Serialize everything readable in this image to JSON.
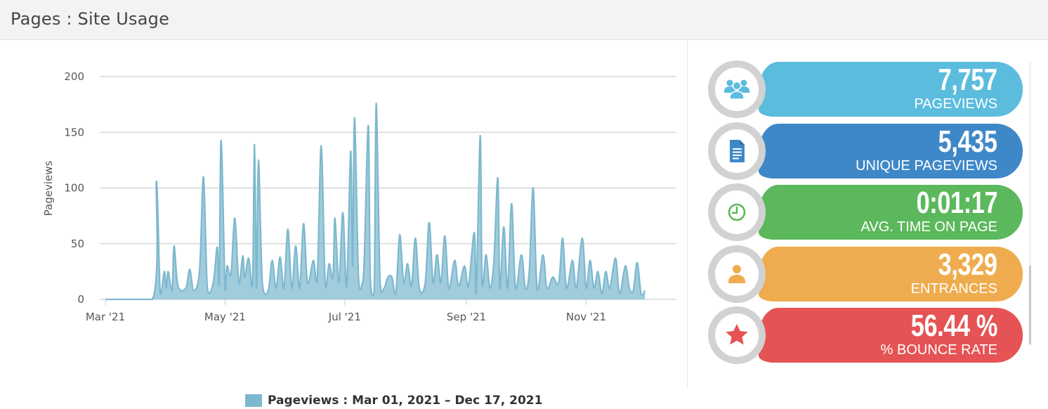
{
  "header": {
    "title": "Pages : Site Usage"
  },
  "chart_data": {
    "type": "area",
    "ylabel": "Pageviews",
    "xlabel": "",
    "ylim": [
      0,
      200
    ],
    "yticks": [
      0,
      50,
      100,
      150,
      200
    ],
    "xrange": [
      "2021-03-01",
      "2021-12-17"
    ],
    "xticks": [
      {
        "date": "2021-03-01",
        "label": "Mar '21"
      },
      {
        "date": "2021-05-01",
        "label": "May '21"
      },
      {
        "date": "2021-07-01",
        "label": "Jul '21"
      },
      {
        "date": "2021-09-01",
        "label": "Sep '21"
      },
      {
        "date": "2021-11-01",
        "label": "Nov '21"
      }
    ],
    "grid": true,
    "series": [
      {
        "name": "Pageviews : Mar 01, 2021 – Dec 17, 2021",
        "color": "#7db8cf",
        "points": [
          [
            "2021-03-01",
            0
          ],
          [
            "2021-03-25",
            0
          ],
          [
            "2021-03-27",
            106
          ],
          [
            "2021-03-29",
            5
          ],
          [
            "2021-03-31",
            25
          ],
          [
            "2021-04-01",
            10
          ],
          [
            "2021-04-02",
            25
          ],
          [
            "2021-04-04",
            8
          ],
          [
            "2021-04-05",
            48
          ],
          [
            "2021-04-07",
            12
          ],
          [
            "2021-04-11",
            10
          ],
          [
            "2021-04-13",
            27
          ],
          [
            "2021-04-15",
            8
          ],
          [
            "2021-04-18",
            26
          ],
          [
            "2021-04-20",
            110
          ],
          [
            "2021-04-22",
            10
          ],
          [
            "2021-04-25",
            15
          ],
          [
            "2021-04-27",
            47
          ],
          [
            "2021-04-28",
            15
          ],
          [
            "2021-04-29",
            143
          ],
          [
            "2021-05-01",
            10
          ],
          [
            "2021-05-02",
            30
          ],
          [
            "2021-05-04",
            23
          ],
          [
            "2021-05-06",
            73
          ],
          [
            "2021-05-08",
            15
          ],
          [
            "2021-05-10",
            39
          ],
          [
            "2021-05-11",
            20
          ],
          [
            "2021-05-13",
            37
          ],
          [
            "2021-05-15",
            15
          ],
          [
            "2021-05-16",
            139
          ],
          [
            "2021-05-17",
            10
          ],
          [
            "2021-05-18",
            125
          ],
          [
            "2021-05-20",
            15
          ],
          [
            "2021-05-23",
            8
          ],
          [
            "2021-05-25",
            35
          ],
          [
            "2021-05-27",
            10
          ],
          [
            "2021-05-29",
            38
          ],
          [
            "2021-05-31",
            10
          ],
          [
            "2021-06-02",
            63
          ],
          [
            "2021-06-04",
            10
          ],
          [
            "2021-06-06",
            48
          ],
          [
            "2021-06-08",
            10
          ],
          [
            "2021-06-10",
            68
          ],
          [
            "2021-06-12",
            15
          ],
          [
            "2021-06-15",
            35
          ],
          [
            "2021-06-17",
            20
          ],
          [
            "2021-06-19",
            138
          ],
          [
            "2021-06-21",
            15
          ],
          [
            "2021-06-23",
            32
          ],
          [
            "2021-06-25",
            20
          ],
          [
            "2021-06-26",
            73
          ],
          [
            "2021-06-28",
            15
          ],
          [
            "2021-06-30",
            78
          ],
          [
            "2021-07-02",
            12
          ],
          [
            "2021-07-04",
            133
          ],
          [
            "2021-07-05",
            30
          ],
          [
            "2021-07-06",
            163
          ],
          [
            "2021-07-08",
            20
          ],
          [
            "2021-07-10",
            15
          ],
          [
            "2021-07-11",
            40
          ],
          [
            "2021-07-13",
            156
          ],
          [
            "2021-07-14",
            20
          ],
          [
            "2021-07-16",
            8
          ],
          [
            "2021-07-17",
            176
          ],
          [
            "2021-07-19",
            15
          ],
          [
            "2021-07-21",
            10
          ],
          [
            "2021-07-23",
            20
          ],
          [
            "2021-07-25",
            20
          ],
          [
            "2021-07-27",
            5
          ],
          [
            "2021-07-29",
            58
          ],
          [
            "2021-07-31",
            15
          ],
          [
            "2021-08-02",
            32
          ],
          [
            "2021-08-04",
            12
          ],
          [
            "2021-08-06",
            55
          ],
          [
            "2021-08-08",
            10
          ],
          [
            "2021-08-11",
            15
          ],
          [
            "2021-08-13",
            69
          ],
          [
            "2021-08-15",
            15
          ],
          [
            "2021-08-17",
            40
          ],
          [
            "2021-08-19",
            15
          ],
          [
            "2021-08-21",
            57
          ],
          [
            "2021-08-23",
            10
          ],
          [
            "2021-08-26",
            35
          ],
          [
            "2021-08-28",
            12
          ],
          [
            "2021-08-31",
            30
          ],
          [
            "2021-09-02",
            12
          ],
          [
            "2021-09-05",
            60
          ],
          [
            "2021-09-06",
            5
          ],
          [
            "2021-09-08",
            147
          ],
          [
            "2021-09-09",
            15
          ],
          [
            "2021-09-11",
            40
          ],
          [
            "2021-09-13",
            10
          ],
          [
            "2021-09-15",
            35
          ],
          [
            "2021-09-17",
            109
          ],
          [
            "2021-09-18",
            10
          ],
          [
            "2021-09-20",
            65
          ],
          [
            "2021-09-22",
            10
          ],
          [
            "2021-09-24",
            86
          ],
          [
            "2021-09-26",
            10
          ],
          [
            "2021-09-29",
            40
          ],
          [
            "2021-10-01",
            10
          ],
          [
            "2021-10-03",
            25
          ],
          [
            "2021-10-05",
            100
          ],
          [
            "2021-10-07",
            10
          ],
          [
            "2021-10-10",
            40
          ],
          [
            "2021-10-12",
            10
          ],
          [
            "2021-10-15",
            20
          ],
          [
            "2021-10-18",
            15
          ],
          [
            "2021-10-20",
            55
          ],
          [
            "2021-10-22",
            10
          ],
          [
            "2021-10-25",
            35
          ],
          [
            "2021-10-27",
            10
          ],
          [
            "2021-10-30",
            55
          ],
          [
            "2021-11-01",
            10
          ],
          [
            "2021-11-03",
            35
          ],
          [
            "2021-11-05",
            10
          ],
          [
            "2021-11-07",
            25
          ],
          [
            "2021-11-09",
            5
          ],
          [
            "2021-11-11",
            25
          ],
          [
            "2021-11-13",
            10
          ],
          [
            "2021-11-16",
            37
          ],
          [
            "2021-11-18",
            5
          ],
          [
            "2021-11-21",
            30
          ],
          [
            "2021-11-23",
            10
          ],
          [
            "2021-11-25",
            8
          ],
          [
            "2021-11-27",
            33
          ],
          [
            "2021-11-29",
            5
          ],
          [
            "2021-12-01",
            8
          ]
        ]
      }
    ]
  },
  "stats": [
    {
      "value": "7,757",
      "label": "PAGEVIEWS",
      "color": "#5bbcdd",
      "icon": "users-icon"
    },
    {
      "value": "5,435",
      "label": "UNIQUE PAGEVIEWS",
      "color": "#3f88c8",
      "icon": "document-icon"
    },
    {
      "value": "0:01:17",
      "label": "AVG. TIME ON PAGE",
      "color": "#5cb85c",
      "icon": "clock-icon"
    },
    {
      "value": "3,329",
      "label": "ENTRANCES",
      "color": "#efac4e",
      "icon": "user-icon"
    },
    {
      "value": "56.44 %",
      "label": "% BOUNCE RATE",
      "color": "#e55354",
      "icon": "star-icon"
    }
  ]
}
